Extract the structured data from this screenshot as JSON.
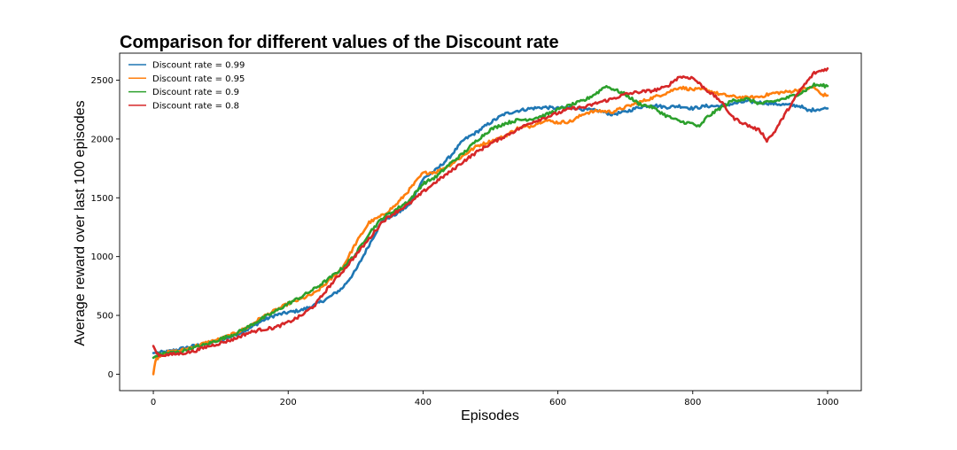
{
  "chart_data": {
    "type": "line",
    "title": "Comparison for different values of the Discount rate",
    "xlabel": "Episodes",
    "ylabel": "Average reward over last 100 episodes",
    "xlim": [
      -50,
      1050
    ],
    "ylim": [
      -140,
      2730
    ],
    "xticks": [
      0,
      200,
      400,
      600,
      800,
      1000
    ],
    "yticks": [
      0,
      500,
      1000,
      1500,
      2000,
      2500
    ],
    "grid": false,
    "legend_position": "top-left",
    "series": [
      {
        "name": "Discount rate = 0.99",
        "color": "#1f77b4",
        "points": [
          [
            0,
            180
          ],
          [
            20,
            190
          ],
          [
            40,
            215
          ],
          [
            60,
            240
          ],
          [
            80,
            262
          ],
          [
            100,
            290
          ],
          [
            120,
            330
          ],
          [
            140,
            380
          ],
          [
            160,
            450
          ],
          [
            180,
            500
          ],
          [
            200,
            525
          ],
          [
            220,
            545
          ],
          [
            240,
            590
          ],
          [
            260,
            650
          ],
          [
            280,
            730
          ],
          [
            300,
            880
          ],
          [
            320,
            1100
          ],
          [
            340,
            1310
          ],
          [
            360,
            1360
          ],
          [
            380,
            1440
          ],
          [
            400,
            1660
          ],
          [
            420,
            1740
          ],
          [
            440,
            1850
          ],
          [
            460,
            1990
          ],
          [
            480,
            2060
          ],
          [
            500,
            2140
          ],
          [
            520,
            2210
          ],
          [
            540,
            2240
          ],
          [
            560,
            2260
          ],
          [
            580,
            2270
          ],
          [
            600,
            2260
          ],
          [
            620,
            2270
          ],
          [
            640,
            2250
          ],
          [
            660,
            2240
          ],
          [
            680,
            2210
          ],
          [
            700,
            2230
          ],
          [
            720,
            2270
          ],
          [
            740,
            2290
          ],
          [
            760,
            2270
          ],
          [
            780,
            2280
          ],
          [
            800,
            2260
          ],
          [
            820,
            2280
          ],
          [
            840,
            2280
          ],
          [
            860,
            2300
          ],
          [
            880,
            2320
          ],
          [
            900,
            2310
          ],
          [
            920,
            2300
          ],
          [
            940,
            2290
          ],
          [
            960,
            2280
          ],
          [
            970,
            2240
          ],
          [
            980,
            2250
          ],
          [
            1000,
            2260
          ]
        ]
      },
      {
        "name": "Discount rate = 0.95",
        "color": "#ff7f0e",
        "points": [
          [
            0,
            0
          ],
          [
            3,
            120
          ],
          [
            10,
            160
          ],
          [
            20,
            185
          ],
          [
            40,
            200
          ],
          [
            60,
            235
          ],
          [
            80,
            270
          ],
          [
            100,
            300
          ],
          [
            120,
            345
          ],
          [
            140,
            400
          ],
          [
            160,
            480
          ],
          [
            180,
            540
          ],
          [
            200,
            600
          ],
          [
            220,
            640
          ],
          [
            240,
            690
          ],
          [
            260,
            790
          ],
          [
            280,
            900
          ],
          [
            300,
            1110
          ],
          [
            320,
            1290
          ],
          [
            340,
            1350
          ],
          [
            360,
            1440
          ],
          [
            380,
            1570
          ],
          [
            400,
            1710
          ],
          [
            420,
            1720
          ],
          [
            440,
            1780
          ],
          [
            460,
            1860
          ],
          [
            480,
            1940
          ],
          [
            500,
            1980
          ],
          [
            520,
            2020
          ],
          [
            540,
            2090
          ],
          [
            560,
            2110
          ],
          [
            580,
            2160
          ],
          [
            600,
            2140
          ],
          [
            620,
            2150
          ],
          [
            640,
            2220
          ],
          [
            660,
            2240
          ],
          [
            680,
            2230
          ],
          [
            700,
            2270
          ],
          [
            720,
            2310
          ],
          [
            740,
            2350
          ],
          [
            760,
            2390
          ],
          [
            780,
            2440
          ],
          [
            800,
            2420
          ],
          [
            820,
            2420
          ],
          [
            840,
            2380
          ],
          [
            860,
            2360
          ],
          [
            880,
            2350
          ],
          [
            900,
            2360
          ],
          [
            920,
            2390
          ],
          [
            940,
            2400
          ],
          [
            960,
            2420
          ],
          [
            980,
            2440
          ],
          [
            990,
            2380
          ],
          [
            1000,
            2370
          ]
        ]
      },
      {
        "name": "Discount rate = 0.9",
        "color": "#2ca02c",
        "points": [
          [
            0,
            140
          ],
          [
            10,
            175
          ],
          [
            20,
            180
          ],
          [
            40,
            190
          ],
          [
            60,
            225
          ],
          [
            80,
            255
          ],
          [
            100,
            300
          ],
          [
            120,
            340
          ],
          [
            140,
            400
          ],
          [
            160,
            470
          ],
          [
            180,
            530
          ],
          [
            200,
            600
          ],
          [
            220,
            660
          ],
          [
            240,
            730
          ],
          [
            260,
            810
          ],
          [
            280,
            900
          ],
          [
            300,
            1020
          ],
          [
            320,
            1200
          ],
          [
            340,
            1330
          ],
          [
            360,
            1400
          ],
          [
            380,
            1480
          ],
          [
            400,
            1620
          ],
          [
            420,
            1680
          ],
          [
            440,
            1790
          ],
          [
            460,
            1880
          ],
          [
            480,
            1990
          ],
          [
            500,
            2080
          ],
          [
            520,
            2130
          ],
          [
            540,
            2160
          ],
          [
            560,
            2170
          ],
          [
            580,
            2200
          ],
          [
            600,
            2250
          ],
          [
            620,
            2290
          ],
          [
            640,
            2330
          ],
          [
            660,
            2400
          ],
          [
            670,
            2450
          ],
          [
            680,
            2430
          ],
          [
            700,
            2380
          ],
          [
            720,
            2300
          ],
          [
            740,
            2270
          ],
          [
            760,
            2200
          ],
          [
            780,
            2150
          ],
          [
            800,
            2130
          ],
          [
            810,
            2100
          ],
          [
            820,
            2180
          ],
          [
            840,
            2260
          ],
          [
            860,
            2330
          ],
          [
            880,
            2340
          ],
          [
            900,
            2300
          ],
          [
            920,
            2320
          ],
          [
            940,
            2350
          ],
          [
            960,
            2390
          ],
          [
            980,
            2460
          ],
          [
            1000,
            2450
          ]
        ]
      },
      {
        "name": "Discount rate = 0.8",
        "color": "#d62728",
        "points": [
          [
            0,
            240
          ],
          [
            5,
            180
          ],
          [
            10,
            160
          ],
          [
            20,
            165
          ],
          [
            40,
            175
          ],
          [
            60,
            195
          ],
          [
            80,
            235
          ],
          [
            100,
            265
          ],
          [
            120,
            300
          ],
          [
            140,
            350
          ],
          [
            160,
            380
          ],
          [
            180,
            395
          ],
          [
            200,
            440
          ],
          [
            220,
            500
          ],
          [
            240,
            590
          ],
          [
            260,
            740
          ],
          [
            280,
            870
          ],
          [
            300,
            1010
          ],
          [
            320,
            1150
          ],
          [
            340,
            1300
          ],
          [
            360,
            1380
          ],
          [
            380,
            1450
          ],
          [
            400,
            1550
          ],
          [
            420,
            1640
          ],
          [
            440,
            1720
          ],
          [
            460,
            1810
          ],
          [
            480,
            1890
          ],
          [
            500,
            1960
          ],
          [
            520,
            2020
          ],
          [
            540,
            2080
          ],
          [
            560,
            2140
          ],
          [
            580,
            2180
          ],
          [
            600,
            2220
          ],
          [
            620,
            2260
          ],
          [
            640,
            2270
          ],
          [
            660,
            2310
          ],
          [
            680,
            2340
          ],
          [
            700,
            2380
          ],
          [
            720,
            2400
          ],
          [
            740,
            2410
          ],
          [
            760,
            2440
          ],
          [
            780,
            2530
          ],
          [
            800,
            2520
          ],
          [
            820,
            2420
          ],
          [
            840,
            2330
          ],
          [
            860,
            2180
          ],
          [
            880,
            2120
          ],
          [
            900,
            2070
          ],
          [
            910,
            1990
          ],
          [
            920,
            2050
          ],
          [
            940,
            2240
          ],
          [
            960,
            2420
          ],
          [
            980,
            2560
          ],
          [
            1000,
            2600
          ]
        ]
      }
    ]
  }
}
